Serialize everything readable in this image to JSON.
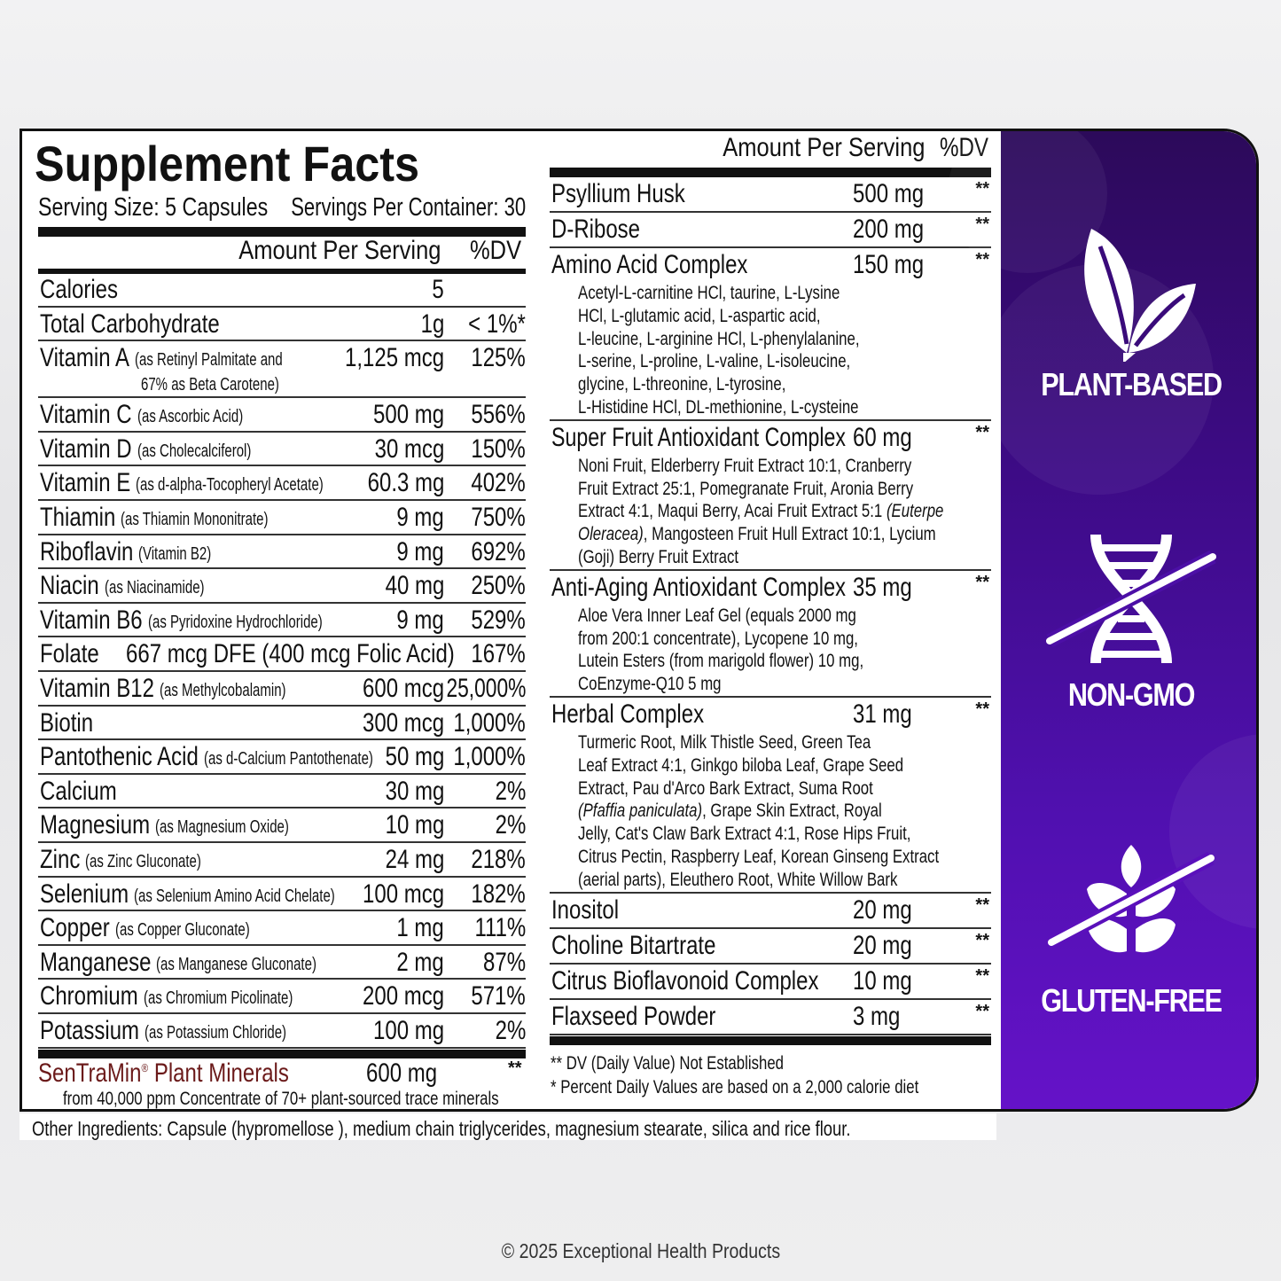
{
  "label": {
    "title": "Supplement Facts",
    "serving_size": "Serving Size: 5 Capsules",
    "servings_per_container": "Servings Per Container: 30",
    "amount_per_serving": "Amount Per Serving",
    "dv_header": "%DV",
    "left_rows": [
      {
        "name": "Calories",
        "note": "",
        "amount": "5",
        "dv": ""
      },
      {
        "name": "Total Carbohydrate",
        "note": "",
        "amount": "1g",
        "dv": "< 1%*"
      },
      {
        "name": "Vitamin A",
        "note": "(as Retinyl Palmitate and",
        "note2": "67% as Beta Carotene)",
        "amount": "1,125 mcg",
        "dv": "125%"
      },
      {
        "name": "Vitamin C",
        "note": "(as Ascorbic Acid)",
        "amount": "500 mg",
        "dv": "556%"
      },
      {
        "name": "Vitamin D",
        "note": "(as Cholecalciferol)",
        "amount": "30 mcg",
        "dv": "150%"
      },
      {
        "name": "Vitamin E",
        "note": "(as d-alpha-Tocopheryl Acetate)",
        "amount": "60.3 mg",
        "dv": "402%"
      },
      {
        "name": "Thiamin",
        "note": "(as Thiamin Mononitrate)",
        "amount": "9 mg",
        "dv": "750%"
      },
      {
        "name": "Riboflavin",
        "note": "(Vitamin B2)",
        "amount": "9 mg",
        "dv": "692%"
      },
      {
        "name": "Niacin",
        "note": "(as Niacinamide)",
        "amount": "40 mg",
        "dv": "250%"
      },
      {
        "name": "Vitamin B6",
        "note": "(as Pyridoxine Hydrochloride)",
        "amount": "9 mg",
        "dv": "529%"
      },
      {
        "name": "Folate",
        "big_note": "667 mcg DFE (400 mcg Folic Acid)",
        "amount": "",
        "dv": "167%"
      },
      {
        "name": "Vitamin B12",
        "note": "(as Methylcobalamin)",
        "amount": "600 mcg",
        "dv": "25,000%"
      },
      {
        "name": "Biotin",
        "note": "",
        "amount": "300 mcg",
        "dv": "1,000%"
      },
      {
        "name": "Pantothenic Acid",
        "note": "(as d-Calcium Pantothenate)",
        "amount": "50 mg",
        "dv": "1,000%"
      },
      {
        "name": "Calcium",
        "note": "",
        "amount": "30 mg",
        "dv": "2%"
      },
      {
        "name": "Magnesium",
        "note": "(as Magnesium Oxide)",
        "amount": "10 mg",
        "dv": "2%"
      },
      {
        "name": "Zinc",
        "note": "(as Zinc Gluconate)",
        "amount": "24 mg",
        "dv": "218%"
      },
      {
        "name": "Selenium",
        "note": "(as Selenium Amino Acid Chelate)",
        "amount": "100 mcg",
        "dv": "182%"
      },
      {
        "name": "Copper",
        "note": "(as Copper Gluconate)",
        "amount": "1 mg",
        "dv": "111%"
      },
      {
        "name": "Manganese",
        "note": "(as Manganese Gluconate)",
        "amount": "2 mg",
        "dv": "87%"
      },
      {
        "name": "Chromium",
        "note": "(as Chromium Picolinate)",
        "amount": "200 mcg",
        "dv": "571%"
      },
      {
        "name": "Potassium",
        "note": "(as Potassium Chloride)",
        "amount": "100 mg",
        "dv": "2%"
      }
    ],
    "sentramin": {
      "name": "SenTraMin",
      "reg": "®",
      "name_rest": " Plant Minerals",
      "amount": "600 mg",
      "dv": "**",
      "note": "from 40,000 ppm Concentrate of 70+ plant-sourced trace minerals",
      "color": "#6b1a1a"
    },
    "right_rows": [
      {
        "name": "Psyllium Husk",
        "amount": "500 mg",
        "dv": "**",
        "lines": []
      },
      {
        "name": "D-Ribose",
        "amount": "200 mg",
        "dv": "**",
        "lines": []
      },
      {
        "name": "Amino Acid Complex",
        "amount": "150 mg",
        "dv": "**",
        "lines": [
          [
            {
              "t": "Acetyl-L-carnitine HCl, taurine, L-Lysine"
            }
          ],
          [
            {
              "t": "HCl, L-glutamic acid, L-aspartic acid,"
            }
          ],
          [
            {
              "t": "L-leucine, L-arginine HCl, L-phenylalanine,"
            }
          ],
          [
            {
              "t": "L-serine, L-proline, L-valine, L-isoleucine,"
            }
          ],
          [
            {
              "t": "glycine, L-threonine, L-tyrosine,"
            }
          ],
          [
            {
              "t": "L-Histidine HCl, DL-methionine, L-cysteine"
            }
          ]
        ]
      },
      {
        "name": "Super Fruit Antioxidant Complex",
        "amount": "60 mg",
        "dv": "**",
        "lines": [
          [
            {
              "t": "Noni Fruit, Elderberry Fruit Extract 10:1, Cranberry"
            }
          ],
          [
            {
              "t": "Fruit Extract 25:1, Pomegranate Fruit, Aronia Berry"
            }
          ],
          [
            {
              "t": "Extract 4:1, Maqui Berry, Acai Fruit Extract 5:1 "
            },
            {
              "t": "(Euterpe",
              "i": true
            }
          ],
          [
            {
              "t": "Oleracea)",
              "i": true
            },
            {
              "t": ", Mangosteen Fruit Hull Extract 10:1, Lycium"
            }
          ],
          [
            {
              "t": "(Goji) Berry Fruit Extract"
            }
          ]
        ]
      },
      {
        "name": "Anti-Aging Antioxidant Complex",
        "amount": "35 mg",
        "dv": "**",
        "lines": [
          [
            {
              "t": "Aloe Vera Inner Leaf Gel (equals 2000 mg"
            }
          ],
          [
            {
              "t": "from 200:1 concentrate), Lycopene 10 mg,"
            }
          ],
          [
            {
              "t": "Lutein Esters (from marigold flower) 10 mg,"
            }
          ],
          [
            {
              "t": "CoEnzyme-Q10 5 mg"
            }
          ]
        ]
      },
      {
        "name": "Herbal Complex",
        "amount": "31 mg",
        "dv": "**",
        "lines": [
          [
            {
              "t": "Turmeric Root, Milk Thistle Seed, Green Tea"
            }
          ],
          [
            {
              "t": "Leaf Extract 4:1, Ginkgo biloba Leaf, Grape Seed"
            }
          ],
          [
            {
              "t": "Extract, Pau d'Arco Bark Extract, Suma Root"
            }
          ],
          [
            {
              "t": "(Pfaffia paniculata)",
              "i": true
            },
            {
              "t": ", Grape Skin Extract, Royal"
            }
          ],
          [
            {
              "t": "Jelly, Cat's Claw Bark Extract 4:1, Rose Hips Fruit,"
            }
          ],
          [
            {
              "t": "Citrus Pectin, Raspberry Leaf, Korean Ginseng Extract"
            }
          ],
          [
            {
              "t": "(aerial parts), Eleuthero Root, White Willow Bark"
            }
          ]
        ]
      },
      {
        "name": "Inositol",
        "amount": "20 mg",
        "dv": "**",
        "lines": []
      },
      {
        "name": "Choline Bitartrate",
        "amount": "20 mg",
        "dv": "**",
        "lines": []
      },
      {
        "name": "Citrus Bioflavonoid Complex",
        "amount": "10 mg",
        "dv": "**",
        "lines": []
      },
      {
        "name": "Flaxseed Powder",
        "amount": "3 mg",
        "dv": "**",
        "lines": []
      }
    ],
    "footnote_dv": "** DV (Daily Value) Not Established",
    "footnote_percent": "*  Percent Daily Values are based on  a 2,000 calorie diet"
  },
  "badges": [
    {
      "label": "PLANT-BASED",
      "icon": "leaf-icon"
    },
    {
      "label": "NON-GMO",
      "icon": "dna-crossed-icon"
    },
    {
      "label": "GLUTEN-FREE",
      "icon": "wheat-crossed-icon"
    }
  ],
  "panel_colors": {
    "top": "#2c0a5a",
    "bottom": "#6512c8"
  },
  "other_ingredients": "Other Ingredients: Capsule (hypromellose ), medium chain triglycerides, magnesium stearate, silica and rice flour.",
  "copyright": "© 2025 Exceptional Health Products"
}
